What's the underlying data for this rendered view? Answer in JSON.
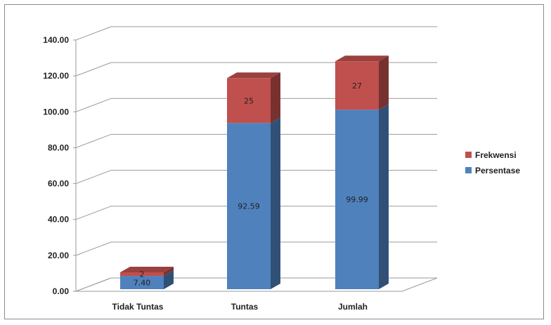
{
  "chart_data": {
    "type": "bar",
    "stacked": true,
    "three_d": true,
    "categories": [
      "Tidak Tuntas",
      "Tuntas",
      "Jumlah"
    ],
    "series": [
      {
        "name": "Persentase",
        "values": [
          7.4,
          92.59,
          99.99
        ],
        "labels": [
          "7.40",
          "92.59",
          "99.99"
        ],
        "color": "#4f81bd"
      },
      {
        "name": "Frekwensi",
        "values": [
          2,
          25,
          27
        ],
        "labels": [
          "2",
          "25",
          "27"
        ],
        "color": "#c0504d"
      }
    ],
    "ylim": [
      0,
      140
    ],
    "y_ticks": [
      "0.00",
      "20.00",
      "40.00",
      "60.00",
      "80.00",
      "100.00",
      "120.00",
      "140.00"
    ],
    "grid": true,
    "legend_position": "right",
    "legend_entries": [
      "Frekwensi",
      "Persentase"
    ]
  }
}
